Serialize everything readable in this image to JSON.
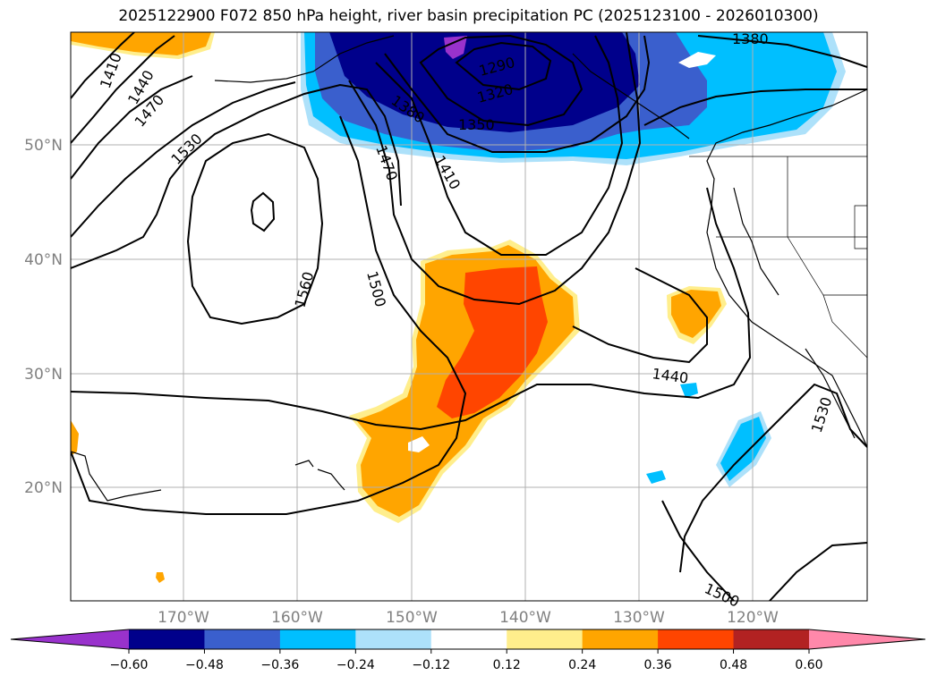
{
  "title": "2025122900 F072 850 hPa height, river basin precipitation PC (2025123100 - 2026010300)",
  "map": {
    "lat_labels": [
      "50°N",
      "40°N",
      "30°N",
      "20°N"
    ],
    "lon_labels": [
      "170°W",
      "160°W",
      "150°W",
      "140°W",
      "130°W",
      "120°W"
    ],
    "contour_labels": [
      "1410",
      "1440",
      "1470",
      "1530",
      "1560",
      "1500",
      "1470",
      "1410",
      "1380",
      "1350",
      "1320",
      "1290",
      "1380",
      "1440",
      "1530",
      "1500"
    ]
  },
  "colorbar": {
    "ticks": [
      "−0.60",
      "−0.48",
      "−0.36",
      "−0.24",
      "−0.12",
      "0.12",
      "0.24",
      "0.36",
      "0.48",
      "0.60"
    ],
    "colors": [
      "#9932CC",
      "#00008B",
      "#3A5FCD",
      "#00BFFF",
      "#ADE1FA",
      "#FFFFFF",
      "#FFEE8C",
      "#FFA500",
      "#FF4500",
      "#B22222",
      "#FF88AA"
    ]
  }
}
